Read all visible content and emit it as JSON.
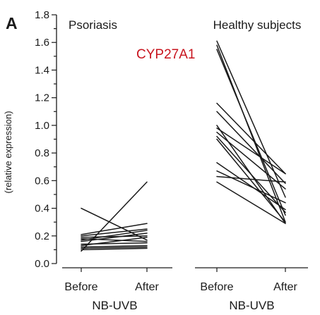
{
  "chart_data": {
    "type": "line",
    "panel_label": "A",
    "ylabel": "(relative expression)",
    "ylim": [
      0,
      1.8
    ],
    "yticks": [
      "0.0",
      "0.2",
      "0.4",
      "0.6",
      "0.8",
      "1.0",
      "1.2",
      "1.4",
      "1.6",
      "1.8"
    ],
    "annotation": "CYP27A1",
    "annotation_color": "#c8141e",
    "line_color": "#1a1a1a",
    "groups": [
      {
        "title": "Psoriasis",
        "categories": [
          "Before",
          "After"
        ],
        "xlabel": "NB-UVB",
        "pairs": [
          [
            0.4,
            0.17
          ],
          [
            0.21,
            0.29
          ],
          [
            0.2,
            0.25
          ],
          [
            0.19,
            0.2
          ],
          [
            0.18,
            0.16
          ],
          [
            0.17,
            0.24
          ],
          [
            0.16,
            0.22
          ],
          [
            0.14,
            0.15
          ],
          [
            0.13,
            0.19
          ],
          [
            0.12,
            0.13
          ],
          [
            0.11,
            0.12
          ],
          [
            0.1,
            0.11
          ],
          [
            0.09,
            0.59
          ]
        ]
      },
      {
        "title": "Healthy subjects",
        "categories": [
          "Before",
          "After"
        ],
        "xlabel": "NB-UVB",
        "pairs": [
          [
            1.61,
            0.48
          ],
          [
            1.58,
            0.3
          ],
          [
            1.55,
            0.35
          ],
          [
            1.16,
            0.65
          ],
          [
            1.1,
            0.58
          ],
          [
            1.0,
            0.29
          ],
          [
            0.98,
            0.65
          ],
          [
            0.95,
            0.54
          ],
          [
            0.92,
            0.37
          ],
          [
            0.9,
            0.3
          ],
          [
            0.73,
            0.39
          ],
          [
            0.67,
            0.44
          ],
          [
            0.63,
            0.59
          ],
          [
            0.59,
            0.29
          ]
        ]
      }
    ]
  }
}
